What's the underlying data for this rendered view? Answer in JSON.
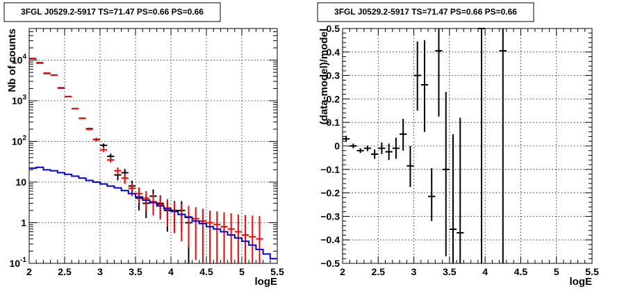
{
  "chart_data": [
    {
      "type": "histogram",
      "title": "3FGL J0529.2-5917 TS=71.47 PS=0.66 PS=0.66",
      "xlabel": "logE",
      "ylabel": "Nb of counts",
      "xlim": [
        2,
        5.5
      ],
      "ylim": [
        0.1,
        60000
      ],
      "yscale": "log",
      "grid": true,
      "x_ticks": [
        {
          "v": 2,
          "label": "2"
        },
        {
          "v": 2.5,
          "label": "2.5"
        },
        {
          "v": 3,
          "label": "3"
        },
        {
          "v": 3.5,
          "label": "3.5"
        },
        {
          "v": 4,
          "label": "4"
        },
        {
          "v": 4.5,
          "label": "4.5"
        },
        {
          "v": 5,
          "label": "5"
        },
        {
          "v": 5.5,
          "label": "5.5"
        }
      ],
      "y_ticks": [
        {
          "v": 0.1,
          "base": "10",
          "exp": "-1"
        },
        {
          "v": 1,
          "base": "1",
          "exp": ""
        },
        {
          "v": 10,
          "base": "10",
          "exp": ""
        },
        {
          "v": 100,
          "base": "10",
          "exp": "2"
        },
        {
          "v": 1000,
          "base": "10",
          "exp": "3"
        },
        {
          "v": 10000,
          "base": "10",
          "exp": "4"
        }
      ],
      "series": [
        {
          "color": "#000000",
          "style": "errorbar",
          "points": [
            {
              "x": 2.05,
              "y": 11000,
              "lo": 10800,
              "hi": 11200
            },
            {
              "x": 2.15,
              "y": 8500,
              "lo": 8300,
              "hi": 8700
            },
            {
              "x": 2.25,
              "y": 4700,
              "lo": 4600,
              "hi": 4850
            },
            {
              "x": 2.35,
              "y": 4300,
              "lo": 4200,
              "hi": 4400
            },
            {
              "x": 2.45,
              "y": 2050,
              "lo": 2000,
              "hi": 2100
            },
            {
              "x": 2.55,
              "y": 1270,
              "lo": 1240,
              "hi": 1300
            },
            {
              "x": 2.65,
              "y": 640,
              "lo": 620,
              "hi": 660
            },
            {
              "x": 2.75,
              "y": 370,
              "lo": 355,
              "hi": 385
            },
            {
              "x": 2.85,
              "y": 205,
              "lo": 192,
              "hi": 218
            },
            {
              "x": 2.95,
              "y": 112,
              "lo": 102,
              "hi": 122
            },
            {
              "x": 3.05,
              "y": 80,
              "lo": 71,
              "hi": 89
            },
            {
              "x": 3.15,
              "y": 43,
              "lo": 37,
              "hi": 50
            },
            {
              "x": 3.25,
              "y": 15,
              "lo": 11,
              "hi": 19
            },
            {
              "x": 3.35,
              "y": 17,
              "lo": 13,
              "hi": 21
            },
            {
              "x": 3.45,
              "y": 8,
              "lo": 5.2,
              "hi": 10.8
            },
            {
              "x": 3.55,
              "y": 4,
              "lo": 2,
              "hi": 6
            },
            {
              "x": 3.65,
              "y": 3,
              "lo": 1.3,
              "hi": 4.7
            },
            {
              "x": 3.75,
              "y": 4.5,
              "lo": 2.4,
              "hi": 6.6
            },
            {
              "x": 3.85,
              "y": 3,
              "lo": 1.3,
              "hi": 4.7
            },
            {
              "x": 3.95,
              "y": 2,
              "lo": 0.6,
              "hi": 3.4
            },
            {
              "x": 4.05,
              "y": 2,
              "lo": 0.6,
              "hi": 3.4
            },
            {
              "x": 4.15,
              "y": 2,
              "lo": 0.6,
              "hi": 3.4
            },
            {
              "x": 4.25,
              "y": 1,
              "lo": 0.1,
              "hi": 2
            }
          ]
        },
        {
          "color": "#ff0000",
          "style": "errorbar",
          "points": [
            {
              "x": 2.05,
              "y": 11000,
              "lo": 10800,
              "hi": 11200
            },
            {
              "x": 2.15,
              "y": 8700,
              "lo": 8500,
              "hi": 8900
            },
            {
              "x": 2.25,
              "y": 4800,
              "lo": 4700,
              "hi": 4950
            },
            {
              "x": 2.35,
              "y": 4300,
              "lo": 4200,
              "hi": 4400
            },
            {
              "x": 2.45,
              "y": 2100,
              "lo": 2050,
              "hi": 2150
            },
            {
              "x": 2.55,
              "y": 1270,
              "lo": 1240,
              "hi": 1300
            },
            {
              "x": 2.65,
              "y": 640,
              "lo": 620,
              "hi": 660
            },
            {
              "x": 2.75,
              "y": 370,
              "lo": 355,
              "hi": 385
            },
            {
              "x": 2.85,
              "y": 200,
              "lo": 188,
              "hi": 212
            },
            {
              "x": 2.95,
              "y": 110,
              "lo": 100,
              "hi": 120
            },
            {
              "x": 3.05,
              "y": 62,
              "lo": 55,
              "hi": 70
            },
            {
              "x": 3.15,
              "y": 35,
              "lo": 30,
              "hi": 41
            },
            {
              "x": 3.25,
              "y": 19,
              "lo": 15,
              "hi": 23
            },
            {
              "x": 3.35,
              "y": 12.5,
              "lo": 9,
              "hi": 16
            },
            {
              "x": 3.45,
              "y": 7,
              "lo": 4.5,
              "hi": 9.5
            },
            {
              "x": 3.55,
              "y": 5.2,
              "lo": 3,
              "hi": 7.4
            },
            {
              "x": 3.65,
              "y": 4,
              "lo": 2,
              "hi": 6
            },
            {
              "x": 3.75,
              "y": 3.3,
              "lo": 1.5,
              "hi": 5.1
            },
            {
              "x": 3.85,
              "y": 2.8,
              "lo": 1.2,
              "hi": 4.4
            },
            {
              "x": 3.95,
              "y": 2.3,
              "lo": 0.8,
              "hi": 3.8
            },
            {
              "x": 4.05,
              "y": 1.9,
              "lo": 0.55,
              "hi": 3.2
            },
            {
              "x": 4.15,
              "y": 1.6,
              "lo": 0.35,
              "hi": 2.85
            },
            {
              "x": 4.25,
              "y": 1.4,
              "lo": 0.25,
              "hi": 2.6
            },
            {
              "x": 4.35,
              "y": 1.25,
              "lo": 0.12,
              "hi": 2.4
            },
            {
              "x": 4.45,
              "y": 1.1,
              "lo": 0.1,
              "hi": 2.2
            },
            {
              "x": 4.55,
              "y": 1.0,
              "lo": 0.1,
              "hi": 2.0
            },
            {
              "x": 4.65,
              "y": 0.9,
              "lo": 0.1,
              "hi": 1.9
            },
            {
              "x": 4.75,
              "y": 0.8,
              "lo": 0.1,
              "hi": 1.8
            },
            {
              "x": 4.85,
              "y": 0.7,
              "lo": 0.1,
              "hi": 1.7
            },
            {
              "x": 4.95,
              "y": 0.6,
              "lo": 0.1,
              "hi": 1.6
            },
            {
              "x": 5.05,
              "y": 0.5,
              "lo": 0.1,
              "hi": 1.55
            },
            {
              "x": 5.15,
              "y": 0.45,
              "lo": 0.1,
              "hi": 1.5
            },
            {
              "x": 5.25,
              "y": 0.4,
              "lo": 0.1,
              "hi": 1.45
            }
          ]
        },
        {
          "color": "#0000dd",
          "style": "step",
          "edges": [
            2.0,
            2.1,
            2.2,
            2.3,
            2.4,
            2.5,
            2.6,
            2.7,
            2.8,
            2.9,
            3.0,
            3.1,
            3.2,
            3.3,
            3.4,
            3.5,
            3.6,
            3.7,
            3.8,
            3.9,
            4.0,
            4.1,
            4.2,
            4.3,
            4.4,
            4.5,
            4.6,
            4.7,
            4.8,
            4.9,
            5.0,
            5.1,
            5.2,
            5.3,
            5.4,
            5.5
          ],
          "values": [
            22,
            23,
            20,
            19,
            17,
            15.5,
            14,
            12.5,
            11,
            10,
            9,
            8,
            7.2,
            6.2,
            5.2,
            4.3,
            3.6,
            3.1,
            2.6,
            2.2,
            1.9,
            1.6,
            1.35,
            1.1,
            0.95,
            0.8,
            0.7,
            0.6,
            0.5,
            0.42,
            0.35,
            0.28,
            0.22,
            0.17,
            0.13
          ]
        }
      ]
    },
    {
      "type": "scatter",
      "title": "3FGL J0529.2-5917 TS=71.47 PS=0.66 PS=0.66",
      "xlabel": "logE",
      "ylabel": "(data-model)/model",
      "xlim": [
        2,
        5.5
      ],
      "ylim": [
        -0.5,
        0.5
      ],
      "grid": true,
      "x_ticks": [
        {
          "v": 2,
          "label": "2"
        },
        {
          "v": 2.5,
          "label": "2.5"
        },
        {
          "v": 3,
          "label": "3"
        },
        {
          "v": 3.5,
          "label": "3.5"
        },
        {
          "v": 4,
          "label": "4"
        },
        {
          "v": 4.5,
          "label": "4.5"
        },
        {
          "v": 5,
          "label": "5"
        },
        {
          "v": 5.5,
          "label": "5.5"
        }
      ],
      "y_ticks": [
        {
          "v": -0.5,
          "label": "−0.5"
        },
        {
          "v": -0.4,
          "label": "−0.4"
        },
        {
          "v": -0.3,
          "label": "−0.3"
        },
        {
          "v": -0.2,
          "label": "−0.2"
        },
        {
          "v": -0.1,
          "label": "−0.1"
        },
        {
          "v": 0,
          "label": "0"
        },
        {
          "v": 0.1,
          "label": "0.1"
        },
        {
          "v": 0.2,
          "label": "0.2"
        },
        {
          "v": 0.3,
          "label": "0.3"
        },
        {
          "v": 0.4,
          "label": "0.4"
        },
        {
          "v": 0.5,
          "label": "0.5"
        }
      ],
      "series": [
        {
          "color": "#000000",
          "style": "errorbar",
          "points": [
            {
              "x": 2.05,
              "y": 0.03,
              "lo": 0.017,
              "hi": 0.043
            },
            {
              "x": 2.15,
              "y": 0.0,
              "lo": -0.01,
              "hi": 0.01
            },
            {
              "x": 2.25,
              "y": -0.02,
              "lo": -0.03,
              "hi": -0.01
            },
            {
              "x": 2.35,
              "y": -0.01,
              "lo": -0.022,
              "hi": 0.002
            },
            {
              "x": 2.45,
              "y": -0.035,
              "lo": -0.055,
              "hi": -0.015
            },
            {
              "x": 2.55,
              "y": -0.01,
              "lo": -0.035,
              "hi": 0.015
            },
            {
              "x": 2.65,
              "y": -0.025,
              "lo": -0.06,
              "hi": 0.01
            },
            {
              "x": 2.75,
              "y": -0.01,
              "lo": -0.055,
              "hi": 0.035
            },
            {
              "x": 2.85,
              "y": 0.05,
              "lo": -0.02,
              "hi": 0.115
            },
            {
              "x": 2.95,
              "y": -0.085,
              "lo": -0.175,
              "hi": 0.0
            },
            {
              "x": 3.05,
              "y": 0.3,
              "lo": 0.15,
              "hi": 0.445
            },
            {
              "x": 3.15,
              "y": 0.26,
              "lo": 0.06,
              "hi": 0.45
            },
            {
              "x": 3.25,
              "y": -0.215,
              "lo": -0.32,
              "hi": -0.095
            },
            {
              "x": 3.35,
              "y": 0.405,
              "lo": 0.125,
              "hi": 0.5
            },
            {
              "x": 3.45,
              "y": -0.1,
              "lo": -0.47,
              "hi": 0.23
            },
            {
              "x": 3.55,
              "y": -0.355,
              "lo": -0.5,
              "hi": 0.05
            },
            {
              "x": 3.65,
              "y": -0.37,
              "lo": -0.5,
              "hi": 0.12
            },
            {
              "x": 3.95,
              "y": 0.5,
              "lo": -0.5,
              "hi": 0.5
            },
            {
              "x": 4.25,
              "y": 0.405,
              "lo": -0.5,
              "hi": 0.5
            }
          ]
        }
      ]
    }
  ]
}
